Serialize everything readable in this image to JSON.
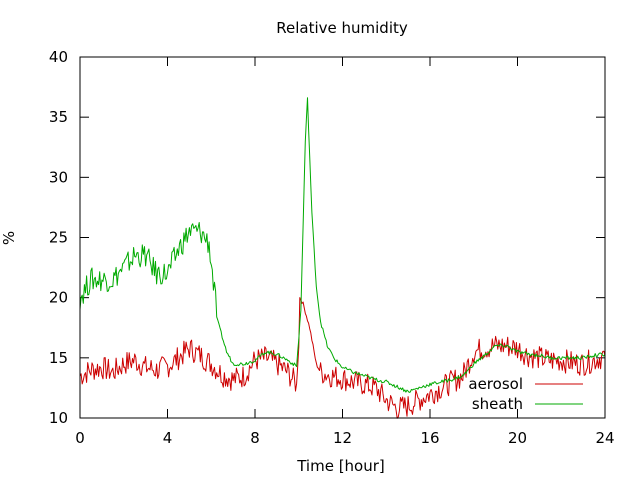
{
  "chart_data": {
    "type": "line",
    "title": "Relative humidity",
    "xlabel": "Time [hour]",
    "ylabel": "%",
    "xlim": [
      0,
      24
    ],
    "ylim": [
      10,
      40
    ],
    "x_ticks": [
      0,
      4,
      8,
      12,
      16,
      20,
      24
    ],
    "y_ticks": [
      10,
      15,
      20,
      25,
      30,
      35,
      40
    ],
    "grid": false,
    "legend_position": "bottom-right",
    "series": [
      {
        "name": "aerosol",
        "color": "#cc0000",
        "x": [
          0,
          0.5,
          1,
          1.5,
          2,
          2.5,
          3,
          3.5,
          4,
          4.5,
          5,
          5.5,
          6,
          6.5,
          7,
          7.5,
          8,
          8.5,
          9,
          9.5,
          9.9,
          10,
          10.05,
          10.2,
          10.5,
          10.8,
          11,
          11.5,
          12,
          12.5,
          13,
          13.5,
          14,
          14.5,
          15,
          15.5,
          16,
          16.5,
          17,
          17.5,
          18,
          18.5,
          19,
          19.5,
          20,
          20.5,
          21,
          21.5,
          22,
          22.5,
          23,
          23.5,
          24
        ],
        "y": [
          13.5,
          14.0,
          14.2,
          13.8,
          14.5,
          14.8,
          14.2,
          14.0,
          14.3,
          15.0,
          15.8,
          15.2,
          14.5,
          13.6,
          13.2,
          13.5,
          14.8,
          15.0,
          14.5,
          13.8,
          12.8,
          16.0,
          20.0,
          19.5,
          17.5,
          14.5,
          13.8,
          13.5,
          13.3,
          13.0,
          12.8,
          12.5,
          11.5,
          10.8,
          11.0,
          11.5,
          12.0,
          12.5,
          13.0,
          13.5,
          15.5,
          15.8,
          16.0,
          16.0,
          15.8,
          15.2,
          15.0,
          14.8,
          14.8,
          14.6,
          14.5,
          14.8,
          15.2
        ]
      },
      {
        "name": "sheath",
        "color": "#00aa00",
        "x": [
          0,
          0.5,
          1,
          1.5,
          2,
          2.5,
          3,
          3.5,
          4,
          4.5,
          5,
          5.5,
          5.9,
          6.3,
          6.7,
          7,
          7.5,
          8,
          8.5,
          9,
          9.5,
          9.9,
          10.1,
          10.3,
          10.4,
          10.6,
          10.8,
          11,
          11.3,
          11.6,
          12,
          12.5,
          13,
          13.5,
          14,
          14.5,
          15,
          15.5,
          16,
          16.5,
          17,
          17.5,
          18,
          18.5,
          19,
          19.5,
          20,
          20.5,
          21,
          21.5,
          22,
          22.5,
          23,
          23.5,
          24
        ],
        "y": [
          20.0,
          21.5,
          21.5,
          21.5,
          22.5,
          23.5,
          23.5,
          22.0,
          22.0,
          24.0,
          25.5,
          25.5,
          24.5,
          18.0,
          15.5,
          14.5,
          14.5,
          14.8,
          15.5,
          15.3,
          14.8,
          14.3,
          19.0,
          33.0,
          36.5,
          27.0,
          21.0,
          18.0,
          16.0,
          15.0,
          14.2,
          13.8,
          13.5,
          13.2,
          13.0,
          12.6,
          12.2,
          12.5,
          12.8,
          13.0,
          13.2,
          13.5,
          14.5,
          15.2,
          16.0,
          16.0,
          15.5,
          15.3,
          15.2,
          15.0,
          15.0,
          15.0,
          15.0,
          15.2,
          15.3
        ]
      }
    ]
  }
}
